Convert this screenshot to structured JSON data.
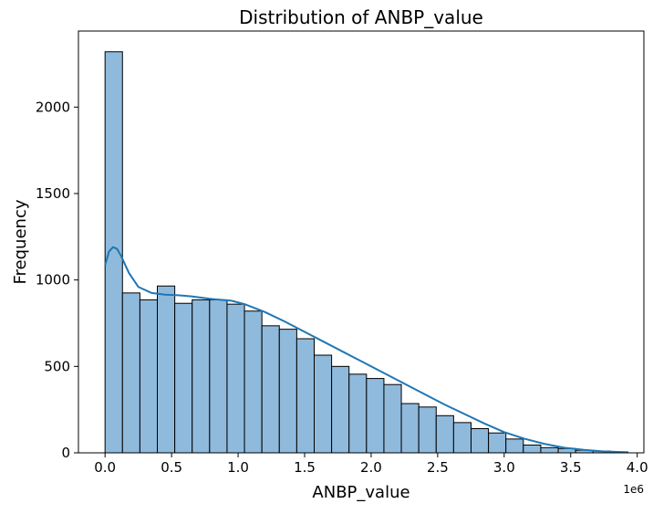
{
  "chart_data": {
    "type": "bar",
    "subtype": "histogram_with_kde",
    "title": "Distribution of ANBP_value",
    "xlabel": "ANBP_value",
    "ylabel": "Frequency",
    "x_offset_label": "1e6",
    "xlim": [
      -0.2,
      4.05
    ],
    "ylim": [
      0,
      2440
    ],
    "x_ticks": [
      0.0,
      0.5,
      1.0,
      1.5,
      2.0,
      2.5,
      3.0,
      3.5,
      4.0
    ],
    "x_tick_labels": [
      "0.0",
      "0.5",
      "1.0",
      "1.5",
      "2.0",
      "2.5",
      "3.0",
      "3.5",
      "4.0"
    ],
    "y_ticks": [
      0,
      500,
      1000,
      1500,
      2000
    ],
    "y_tick_labels": [
      "0",
      "500",
      "1000",
      "1500",
      "2000"
    ],
    "bin_start": 0.0,
    "bin_width": 0.131,
    "values": [
      2320,
      925,
      885,
      965,
      865,
      885,
      885,
      860,
      820,
      735,
      715,
      660,
      565,
      500,
      455,
      430,
      395,
      285,
      265,
      215,
      175,
      140,
      115,
      80,
      45,
      30,
      25,
      15,
      10,
      5
    ],
    "kde": {
      "x": [
        0.0,
        0.03,
        0.06,
        0.09,
        0.12,
        0.18,
        0.25,
        0.35,
        0.45,
        0.55,
        0.65,
        0.8,
        0.95,
        1.05,
        1.2,
        1.35,
        1.5,
        1.65,
        1.8,
        1.95,
        2.1,
        2.25,
        2.4,
        2.55,
        2.7,
        2.85,
        3.0,
        3.15,
        3.3,
        3.45,
        3.6,
        3.75,
        3.93
      ],
      "y": [
        1085,
        1165,
        1190,
        1180,
        1140,
        1040,
        960,
        925,
        915,
        912,
        905,
        890,
        880,
        860,
        815,
        760,
        700,
        640,
        580,
        520,
        460,
        400,
        340,
        280,
        225,
        170,
        120,
        82,
        52,
        30,
        17,
        8,
        3
      ]
    },
    "bar_fill": "#8fbadc",
    "bar_edge": "#000000",
    "kde_color": "#1f77b4",
    "grid": false,
    "legend": "none"
  }
}
